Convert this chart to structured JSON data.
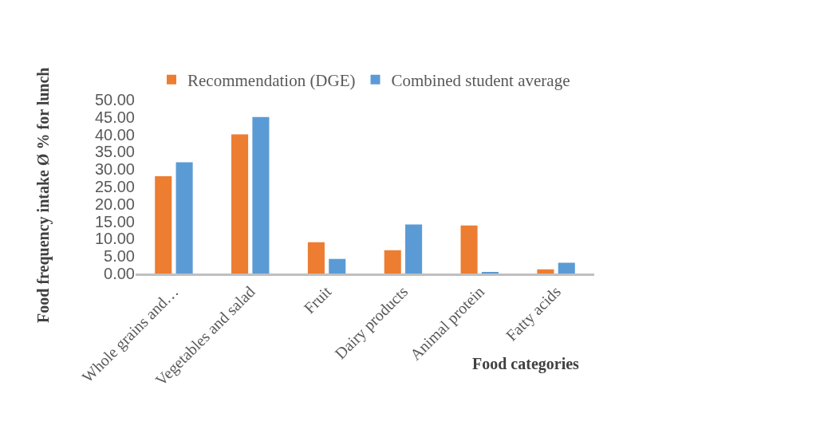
{
  "chart_data": {
    "type": "bar",
    "xlabel": "Food categories",
    "ylabel": "Food frequency intake Ø % for lunch",
    "categories": [
      "Whole grains and…",
      "Vegetables and salad",
      "Fruit",
      "Dairy products",
      "Animal protein",
      "Fatty acids"
    ],
    "series": [
      {
        "name": "Recommendation (DGE)",
        "color": "#ed7d31",
        "values": [
          28,
          40,
          9,
          6.7,
          13.8,
          1.2
        ]
      },
      {
        "name": "Combined student average",
        "color": "#5b9bd5",
        "values": [
          32,
          45,
          4.2,
          14.1,
          0.4,
          3.1
        ]
      }
    ],
    "ylim": [
      0,
      50
    ],
    "yticks": [
      {
        "value": 0,
        "label": "0.00"
      },
      {
        "value": 5,
        "label": "5.00"
      },
      {
        "value": 10,
        "label": "10.00"
      },
      {
        "value": 15,
        "label": "15.00"
      },
      {
        "value": 20,
        "label": "20.00"
      },
      {
        "value": 25,
        "label": "25.00"
      },
      {
        "value": 30,
        "label": "30.00"
      },
      {
        "value": 35,
        "label": "35.00"
      },
      {
        "value": 40,
        "label": "40.00"
      },
      {
        "value": 45,
        "label": "45.00"
      },
      {
        "value": 50,
        "label": "50.00"
      }
    ],
    "grid": false,
    "legend": "top"
  }
}
